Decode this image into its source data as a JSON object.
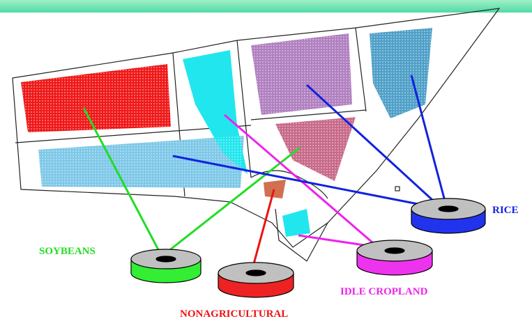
{
  "labels": {
    "soybeans": "SOYBEANS",
    "nonagricultural": "NONAGRICULTURAL",
    "idle_cropland": "IDLE CROPLAND",
    "rice": "RICE"
  }
}
